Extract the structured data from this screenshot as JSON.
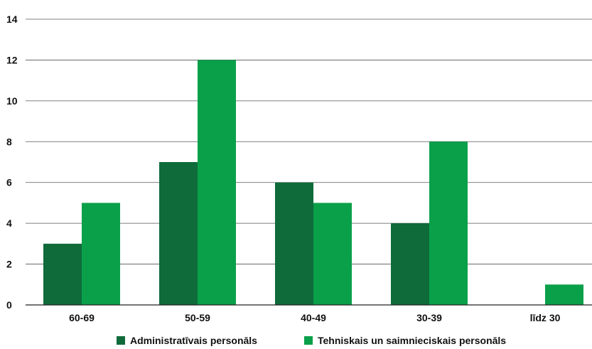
{
  "chart_data": {
    "type": "bar",
    "categories": [
      "60-69",
      "50-59",
      "40-49",
      "30-39",
      "līdz 30"
    ],
    "series": [
      {
        "name": "Administratīvais personāls",
        "values": [
          3,
          7,
          6,
          4,
          0
        ],
        "color": "#0f6b3a"
      },
      {
        "name": "Tehniskais un saimnieciskais personāls",
        "values": [
          5,
          12,
          5,
          8,
          1
        ],
        "color": "#0aa04a"
      }
    ],
    "ylim": [
      0,
      14
    ],
    "yticks": [
      "0",
      "2",
      "4",
      "6",
      "8",
      "10",
      "12",
      "14"
    ],
    "grid": true,
    "legend_position": "bottom"
  }
}
